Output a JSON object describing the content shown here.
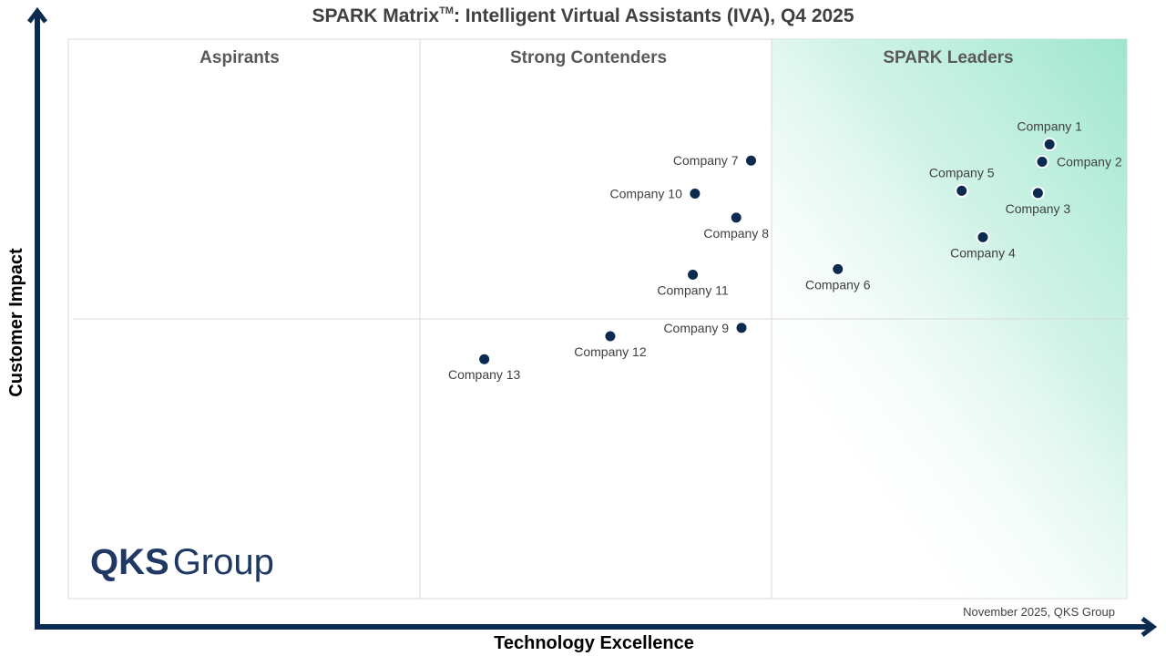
{
  "title": {
    "main": "SPARK Matrix",
    "tm": "TM",
    "rest": ": Intelligent Virtual Assistants (IVA), Q4 2025"
  },
  "colors": {
    "axis": "#0b2a4f",
    "dot": "#0b2a4f",
    "leader_tint": "#9ee6cf",
    "grid": "#d9d9d9",
    "logo": "#1f3864"
  },
  "segments": [
    "Aspirants",
    "Strong Contenders",
    "SPARK Leaders"
  ],
  "footnote": "November 2025, QKS Group",
  "logo": {
    "bold": "QKS",
    "regular": "Group"
  },
  "chart_data": {
    "type": "scatter",
    "title": "SPARK Matrix™: Intelligent Virtual Assistants (IVA), Q4 2025",
    "xlabel": "Technology Excellence",
    "ylabel": "Customer Impact",
    "xlim": [
      0,
      100
    ],
    "ylim": [
      0,
      100
    ],
    "grid": true,
    "points": [
      {
        "name": "Company 1",
        "x": 92.7,
        "y": 81.2,
        "label_pos": "above"
      },
      {
        "name": "Company 2",
        "x": 92.0,
        "y": 78.1,
        "label_pos": "right"
      },
      {
        "name": "Company 3",
        "x": 91.6,
        "y": 72.5,
        "label_pos": "below"
      },
      {
        "name": "Company 4",
        "x": 86.4,
        "y": 64.6,
        "label_pos": "below"
      },
      {
        "name": "Company 5",
        "x": 84.4,
        "y": 72.9,
        "label_pos": "above"
      },
      {
        "name": "Company 6",
        "x": 72.7,
        "y": 58.9,
        "label_pos": "below"
      },
      {
        "name": "Company 7",
        "x": 64.5,
        "y": 78.3,
        "label_pos": "left"
      },
      {
        "name": "Company 8",
        "x": 63.1,
        "y": 68.1,
        "label_pos": "below"
      },
      {
        "name": "Company 9",
        "x": 63.6,
        "y": 48.4,
        "label_pos": "left"
      },
      {
        "name": "Company 10",
        "x": 59.2,
        "y": 72.4,
        "label_pos": "left"
      },
      {
        "name": "Company 11",
        "x": 59.0,
        "y": 57.9,
        "label_pos": "below"
      },
      {
        "name": "Company 12",
        "x": 51.2,
        "y": 46.9,
        "label_pos": "below"
      },
      {
        "name": "Company 13",
        "x": 39.3,
        "y": 42.8,
        "label_pos": "below"
      }
    ]
  }
}
